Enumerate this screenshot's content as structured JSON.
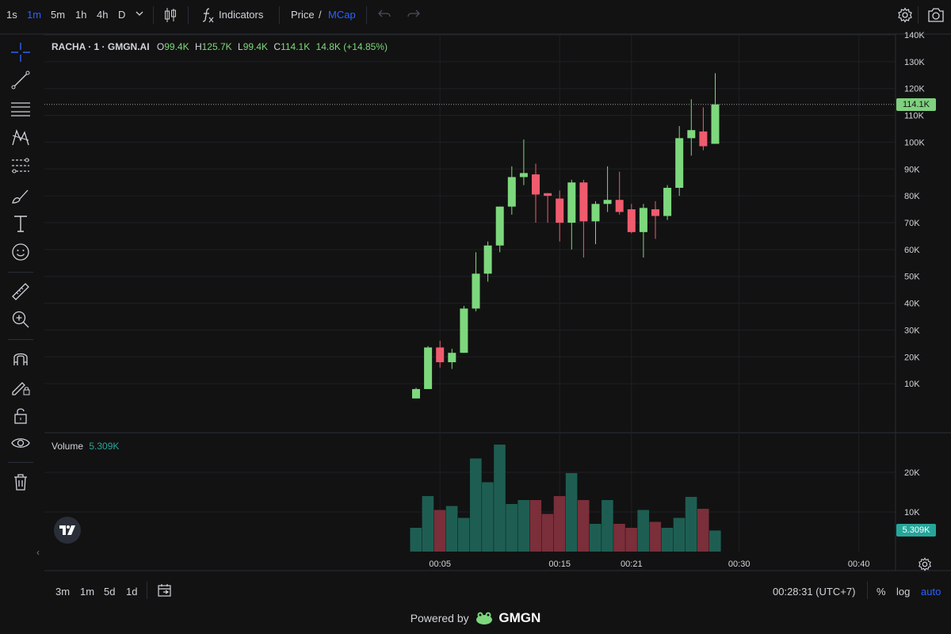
{
  "topbar": {
    "timeframes": [
      "1s",
      "1m",
      "5m",
      "1h",
      "4h",
      "D"
    ],
    "active_timeframe": "1m",
    "indicators_label": "Indicators",
    "price_label": "Price",
    "slash": "/",
    "mcap_label": "MCap"
  },
  "legend": {
    "symbol": "RACHA · 1 · GMGN.AI",
    "open_key": "O",
    "open": "99.4K",
    "high_key": "H",
    "high": "125.7K",
    "low_key": "L",
    "low": "99.4K",
    "close_key": "C",
    "close": "114.1K",
    "change": "14.8K (+14.85%)"
  },
  "volume_legend": {
    "label": "Volume",
    "value": "5.309K"
  },
  "price_tag": "114.1K",
  "volume_tag": "5.309K",
  "bottombar": {
    "ranges": [
      "3m",
      "1m",
      "5d",
      "1d"
    ],
    "clock": "00:28:31 (UTC+7)",
    "percent": "%",
    "log": "log",
    "auto": "auto"
  },
  "footer": {
    "powered_by": "Powered by",
    "brand": "GMGN"
  },
  "colors": {
    "up": "#7dd87d",
    "down": "#f05b6e",
    "vol_up": "#1e5e52",
    "vol_down": "#7a2f3a",
    "accent": "#2962ff"
  },
  "chart_data": {
    "type": "candlestick",
    "price_axis": {
      "min": 0,
      "max": 140000,
      "ticks": [
        "140K",
        "130K",
        "120K",
        "110K",
        "100K",
        "90K",
        "80K",
        "70K",
        "60K",
        "50K",
        "40K",
        "30K",
        "20K",
        "10K"
      ]
    },
    "volume_axis": {
      "ticks": [
        "20K",
        "10K"
      ]
    },
    "time_ticks": [
      {
        "label": "00:05",
        "index": 2
      },
      {
        "label": "00:15",
        "index": 12
      },
      {
        "label": "00:21",
        "index": 18
      },
      {
        "label": "00:30",
        "index": 27
      },
      {
        "label": "00:40",
        "index": 37
      }
    ],
    "candles": [
      {
        "o": 4500,
        "h": 8500,
        "l": 4500,
        "c": 8000,
        "v": 6000
      },
      {
        "o": 8000,
        "h": 24000,
        "l": 8000,
        "c": 23500,
        "v": 14000
      },
      {
        "o": 23500,
        "h": 26000,
        "l": 16000,
        "c": 18000,
        "v": 10500
      },
      {
        "o": 18000,
        "h": 23000,
        "l": 15500,
        "c": 21500,
        "v": 11500
      },
      {
        "o": 21500,
        "h": 39000,
        "l": 21500,
        "c": 38000,
        "v": 8500
      },
      {
        "o": 38000,
        "h": 59000,
        "l": 37000,
        "c": 51000,
        "v": 23500
      },
      {
        "o": 51000,
        "h": 63000,
        "l": 48000,
        "c": 61500,
        "v": 17500
      },
      {
        "o": 61500,
        "h": 76000,
        "l": 59000,
        "c": 76000,
        "v": 27000
      },
      {
        "o": 76000,
        "h": 91000,
        "l": 73000,
        "c": 87000,
        "v": 12000
      },
      {
        "o": 87000,
        "h": 101000,
        "l": 84000,
        "c": 88500,
        "v": 13000
      },
      {
        "o": 88000,
        "h": 92000,
        "l": 70000,
        "c": 80500,
        "v": 13000
      },
      {
        "o": 81000,
        "h": 81000,
        "l": 70000,
        "c": 80000,
        "v": 9500
      },
      {
        "o": 79000,
        "h": 82000,
        "l": 63000,
        "c": 70000,
        "v": 14000
      },
      {
        "o": 70000,
        "h": 86000,
        "l": 60000,
        "c": 85000,
        "v": 19800
      },
      {
        "o": 85000,
        "h": 86000,
        "l": 57000,
        "c": 70500,
        "v": 13000
      },
      {
        "o": 70500,
        "h": 78000,
        "l": 62000,
        "c": 77000,
        "v": 7000
      },
      {
        "o": 77000,
        "h": 91000,
        "l": 74000,
        "c": 78500,
        "v": 13000
      },
      {
        "o": 78500,
        "h": 89000,
        "l": 73000,
        "c": 74000,
        "v": 7000
      },
      {
        "o": 75000,
        "h": 77000,
        "l": 66000,
        "c": 66500,
        "v": 6000
      },
      {
        "o": 66500,
        "h": 77000,
        "l": 57000,
        "c": 75500,
        "v": 10500
      },
      {
        "o": 75000,
        "h": 78000,
        "l": 64000,
        "c": 72500,
        "v": 7500
      },
      {
        "o": 72500,
        "h": 84000,
        "l": 71000,
        "c": 83000,
        "v": 6000
      },
      {
        "o": 83000,
        "h": 106000,
        "l": 80000,
        "c": 101500,
        "v": 8500
      },
      {
        "o": 101500,
        "h": 116000,
        "l": 95000,
        "c": 104500,
        "v": 13800
      },
      {
        "o": 104000,
        "h": 113000,
        "l": 97000,
        "c": 98500,
        "v": 10800
      },
      {
        "o": 99400,
        "h": 125700,
        "l": 99400,
        "c": 114100,
        "v": 5309
      }
    ]
  }
}
